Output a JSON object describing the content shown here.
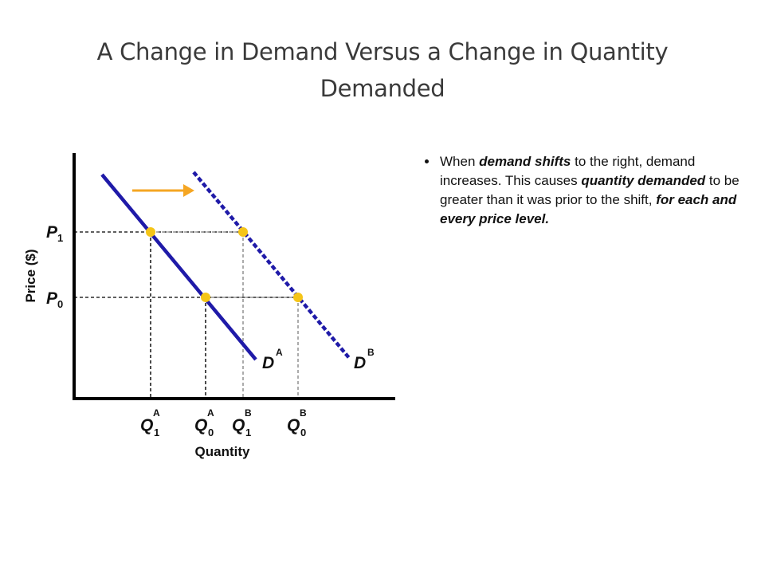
{
  "slide": {
    "title": "A Change in Demand Versus a Change in Quantity Demanded"
  },
  "diagram": {
    "y_axis_label": "Price ($)",
    "x_axis_label": "Quantity",
    "price_labels": {
      "p1": {
        "base": "P",
        "sub": "1"
      },
      "p0": {
        "base": "P",
        "sub": "0"
      }
    },
    "quantity_labels": {
      "q1a": {
        "base": "Q",
        "sub": "1",
        "sup": "A"
      },
      "q0a": {
        "base": "Q",
        "sub": "0",
        "sup": "A"
      },
      "q1b": {
        "base": "Q",
        "sub": "1",
        "sup": "B"
      },
      "q0b": {
        "base": "Q",
        "sub": "0",
        "sup": "B"
      }
    },
    "curve_labels": {
      "da": {
        "base": "D",
        "sup": "A"
      },
      "db": {
        "base": "D",
        "sup": "B"
      }
    },
    "colors": {
      "curve": "#1f1aa8",
      "point": "#f5c518",
      "arrow": "#f5a623",
      "axis": "#000000",
      "guide_dark": "#000000",
      "guide_light": "#888888"
    },
    "icons": {
      "shift_arrow": "right-arrow"
    }
  },
  "bullets": [
    {
      "segments": [
        {
          "text": "When ",
          "emph": false
        },
        {
          "text": "demand shifts",
          "emph": true
        },
        {
          "text": " to the right, demand increases. This causes ",
          "emph": false
        },
        {
          "text": "quantity demanded",
          "emph": true
        },
        {
          "text": " to be greater than it was prior to the shift, ",
          "emph": false
        },
        {
          "text": "for each and every price level.",
          "emph": true
        }
      ]
    }
  ]
}
